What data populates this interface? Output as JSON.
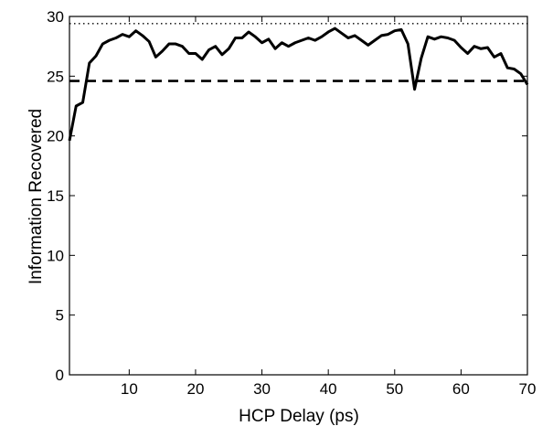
{
  "chart_data": {
    "type": "line",
    "title": "",
    "xlabel": "HCP Delay (ps)",
    "ylabel": "Information Recovered",
    "xlim": [
      1,
      70
    ],
    "ylim": [
      0,
      30
    ],
    "xticks": [
      10,
      20,
      30,
      40,
      50,
      60,
      70
    ],
    "yticks": [
      0,
      5,
      10,
      15,
      20,
      25,
      30
    ],
    "grid": false,
    "series": [
      {
        "style": "solid",
        "color": "#000000",
        "x": [
          1,
          2,
          3,
          4,
          5,
          6,
          7,
          8,
          9,
          10,
          11,
          12,
          13,
          14,
          15,
          16,
          17,
          18,
          19,
          20,
          21,
          22,
          23,
          24,
          25,
          26,
          27,
          28,
          29,
          30,
          31,
          32,
          33,
          34,
          35,
          36,
          37,
          38,
          39,
          40,
          41,
          42,
          43,
          44,
          45,
          46,
          47,
          48,
          49,
          50,
          51,
          52,
          53,
          54,
          55,
          56,
          57,
          58,
          59,
          60,
          61,
          62,
          63,
          64,
          65,
          66,
          67,
          68,
          69,
          70
        ],
        "y": [
          19.6,
          22.5,
          22.8,
          26.1,
          26.7,
          27.7,
          28.0,
          28.2,
          28.5,
          28.3,
          28.8,
          28.4,
          27.9,
          26.6,
          27.1,
          27.7,
          27.7,
          27.5,
          26.9,
          26.9,
          26.4,
          27.2,
          27.5,
          26.8,
          27.3,
          28.2,
          28.2,
          28.7,
          28.3,
          27.8,
          28.1,
          27.3,
          27.8,
          27.5,
          27.8,
          28.0,
          28.2,
          28.0,
          28.3,
          28.7,
          29.0,
          28.6,
          28.2,
          28.4,
          28.0,
          27.6,
          28.0,
          28.4,
          28.5,
          28.8,
          28.9,
          27.7,
          23.9,
          26.5,
          28.3,
          28.1,
          28.3,
          28.2,
          28.0,
          27.4,
          26.9,
          27.5,
          27.3,
          27.4,
          26.6,
          26.9,
          25.7,
          25.6,
          25.2,
          24.3
        ]
      },
      {
        "style": "dashed",
        "color": "#000000",
        "x": [
          1,
          70
        ],
        "y": [
          24.6,
          24.6
        ]
      },
      {
        "style": "dotted",
        "color": "#000000",
        "x": [
          1,
          70
        ],
        "y": [
          29.4,
          29.4
        ]
      }
    ]
  }
}
